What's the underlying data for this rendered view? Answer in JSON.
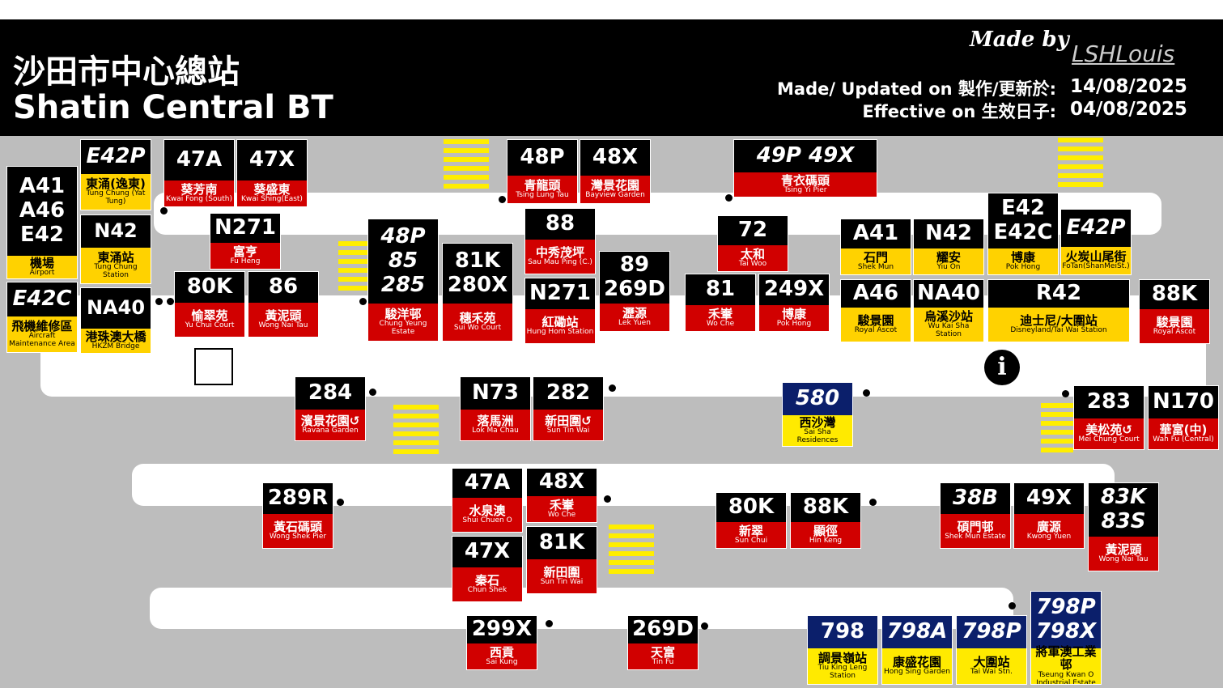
{
  "header": {
    "title_zh": "沙田市中心總站",
    "title_en": "Shatin Central BT",
    "made_by": "Made by",
    "author": "LSHLouis",
    "updated_label": "Made/ Updated on 製作/更新於:",
    "updated_date": "14/08/2025",
    "effective_label": "Effective on 生效日子:",
    "effective_date": "04/08/2025"
  },
  "signs": [
    {
      "routes": [
        "A41",
        "A46",
        "E42"
      ],
      "zh": "機場",
      "en": "Airport",
      "header_color": "#000000",
      "color": "#ffd200"
    },
    {
      "routes": [
        "E42C"
      ],
      "zh": "飛機維修區",
      "en": "Aircraft Maintenance Area",
      "header_color": "#000000",
      "color": "#ffd200"
    },
    {
      "routes": [
        "E42P"
      ],
      "zh": "東涌(逸東)",
      "en": "Tung Chung (Yat Tung)",
      "header_color": "#000000",
      "color": "#ffd200"
    },
    {
      "routes": [
        "N42"
      ],
      "zh": "東涌站",
      "en": "Tung Chung Station",
      "header_color": "#000000",
      "color": "#ffd200"
    },
    {
      "routes": [
        "NA40"
      ],
      "zh": "港珠澳大橋",
      "en": "HKZM Bridge",
      "header_color": "#000000",
      "color": "#ffd200"
    },
    {
      "routes": [
        "47A"
      ],
      "zh": "葵芳南",
      "en": "Kwai Fong (South)",
      "header_color": "#000000",
      "color": "#d10000"
    },
    {
      "routes": [
        "47X"
      ],
      "zh": "葵盛東",
      "en": "Kwai Shing(East)",
      "header_color": "#000000",
      "color": "#d10000"
    },
    {
      "routes": [
        "N271"
      ],
      "zh": "富亨",
      "en": "Fu Heng",
      "header_color": "#000000",
      "color": "#d10000"
    },
    {
      "routes": [
        "80K"
      ],
      "zh": "愉翠苑",
      "en": "Yu Chui Court",
      "header_color": "#000000",
      "color": "#d10000"
    },
    {
      "routes": [
        "86"
      ],
      "zh": "黃泥頭",
      "en": "Wong Nai Tau",
      "header_color": "#000000",
      "color": "#d10000"
    },
    {
      "routes": [
        "48P",
        "85",
        "285"
      ],
      "zh": "駿洋邨",
      "en": "Chung Yeung Estate",
      "header_color": "#000000",
      "color": "#d10000"
    },
    {
      "routes": [
        "81K",
        "280X"
      ],
      "zh": "穗禾苑",
      "en": "Sui Wo Court",
      "header_color": "#000000",
      "color": "#d10000"
    },
    {
      "routes": [
        "48P"
      ],
      "zh": "青龍頭",
      "en": "Tsing Lung Tau",
      "header_color": "#000000",
      "color": "#d10000"
    },
    {
      "routes": [
        "48X"
      ],
      "zh": "灣景花園",
      "en": "Bayview Garden",
      "header_color": "#000000",
      "color": "#d10000"
    },
    {
      "routes": [
        "88"
      ],
      "zh": "中秀茂坪",
      "en": "Sau Mau Ping (C.)",
      "header_color": "#000000",
      "color": "#d10000"
    },
    {
      "routes": [
        "N271"
      ],
      "zh": "紅磡站",
      "en": "Hung Hom Station",
      "header_color": "#000000",
      "color": "#d10000"
    },
    {
      "routes": [
        "89",
        "269D"
      ],
      "zh": "瀝源",
      "en": "Lek Yuen",
      "header_color": "#000000",
      "color": "#d10000"
    },
    {
      "routes": [
        "49P 49X"
      ],
      "zh": "青衣碼頭",
      "en": "Tsing Yi Pier",
      "header_color": "#000000",
      "color": "#d10000"
    },
    {
      "routes": [
        "72"
      ],
      "zh": "太和",
      "en": "Tai Woo",
      "header_color": "#000000",
      "color": "#d10000"
    },
    {
      "routes": [
        "81"
      ],
      "zh": "禾輋",
      "en": "Wo Che",
      "header_color": "#000000",
      "color": "#d10000"
    },
    {
      "routes": [
        "249X"
      ],
      "zh": "博康",
      "en": "Pok Hong",
      "header_color": "#000000",
      "color": "#d10000"
    },
    {
      "routes": [
        "A41"
      ],
      "zh": "石門",
      "en": "Shek Mun",
      "header_color": "#000000",
      "color": "#ffd200"
    },
    {
      "routes": [
        "N42"
      ],
      "zh": "耀安",
      "en": "Yiu On",
      "header_color": "#000000",
      "color": "#ffd200"
    },
    {
      "routes": [
        "E42",
        "E42C"
      ],
      "zh": "博康",
      "en": "Pok Hong",
      "header_color": "#000000",
      "color": "#ffd200"
    },
    {
      "routes": [
        "E42P"
      ],
      "zh": "火炭山尾街",
      "en": "FoTan(ShanMeiSt.)",
      "header_color": "#000000",
      "color": "#ffd200"
    },
    {
      "routes": [
        "A46"
      ],
      "zh": "駿景園",
      "en": "Royal Ascot",
      "header_color": "#000000",
      "color": "#ffd200"
    },
    {
      "routes": [
        "NA40"
      ],
      "zh": "烏溪沙站",
      "en": "Wu Kai Sha Station",
      "header_color": "#000000",
      "color": "#ffd200"
    },
    {
      "routes": [
        "R42"
      ],
      "zh": "迪士尼/大圍站",
      "en": "Disneyland/Tai Wai Station",
      "header_color": "#000000",
      "color": "#ffd200"
    },
    {
      "routes": [
        "88K"
      ],
      "zh": "駿景園",
      "en": "Royal Ascot",
      "header_color": "#000000",
      "color": "#d10000"
    },
    {
      "routes": [
        "284"
      ],
      "zh": "濱景花園↺",
      "en": "Ravana Garden",
      "header_color": "#000000",
      "color": "#d10000"
    },
    {
      "routes": [
        "N73"
      ],
      "zh": "落馬洲",
      "en": "Lok Ma Chau",
      "header_color": "#000000",
      "color": "#d10000"
    },
    {
      "routes": [
        "282"
      ],
      "zh": "新田圍↺",
      "en": "Sun Tin Wai",
      "header_color": "#000000",
      "color": "#d10000"
    },
    {
      "routes": [
        "580"
      ],
      "zh": "西沙灣",
      "en": "Sai Sha Residences",
      "header_color": "#0b1f6b",
      "color": "#ffea00"
    },
    {
      "routes": [
        "283"
      ],
      "zh": "美松苑↺",
      "en": "Mei Chung Court",
      "header_color": "#000000",
      "color": "#d10000"
    },
    {
      "routes": [
        "N170"
      ],
      "zh": "華富(中)",
      "en": "Wah Fu (Central)",
      "header_color": "#000000",
      "color": "#d10000"
    },
    {
      "routes": [
        "289R"
      ],
      "zh": "黃石碼頭",
      "en": "Wong Shek Pier",
      "header_color": "#000000",
      "color": "#d10000"
    },
    {
      "routes": [
        "47A"
      ],
      "zh": "水泉澳",
      "en": "Shui Chuen O",
      "header_color": "#000000",
      "color": "#d10000"
    },
    {
      "routes": [
        "48X"
      ],
      "zh": "禾輋",
      "en": "Wo Che",
      "header_color": "#000000",
      "color": "#d10000"
    },
    {
      "routes": [
        "47X"
      ],
      "zh": "秦石",
      "en": "Chun Shek",
      "header_color": "#000000",
      "color": "#d10000"
    },
    {
      "routes": [
        "81K"
      ],
      "zh": "新田圍",
      "en": "Sun Tin Wai",
      "header_color": "#000000",
      "color": "#d10000"
    },
    {
      "routes": [
        "80K"
      ],
      "zh": "新翠",
      "en": "Sun Chui",
      "header_color": "#000000",
      "color": "#d10000"
    },
    {
      "routes": [
        "88K"
      ],
      "zh": "顯徑",
      "en": "Hin Keng",
      "header_color": "#000000",
      "color": "#d10000"
    },
    {
      "routes": [
        "38B"
      ],
      "zh": "碩門邨",
      "en": "Shek Mun Estate",
      "header_color": "#000000",
      "color": "#d10000"
    },
    {
      "routes": [
        "49X"
      ],
      "zh": "廣源",
      "en": "Kwong Yuen",
      "header_color": "#000000",
      "color": "#d10000"
    },
    {
      "routes": [
        "83K",
        "83S"
      ],
      "zh": "黃泥頭",
      "en": "Wong Nai Tau",
      "header_color": "#000000",
      "color": "#d10000"
    },
    {
      "routes": [
        "299X"
      ],
      "zh": "西貢",
      "en": "Sai Kung",
      "header_color": "#000000",
      "color": "#d10000"
    },
    {
      "routes": [
        "269D"
      ],
      "zh": "天富",
      "en": "Tin Fu",
      "header_color": "#000000",
      "color": "#d10000"
    },
    {
      "routes": [
        "798"
      ],
      "zh": "調景嶺站",
      "en": "Tiu King Leng Station",
      "header_color": "#0b1f6b",
      "color": "#ffea00"
    },
    {
      "routes": [
        "798A"
      ],
      "zh": "康盛花園",
      "en": "Hong Sing Garden",
      "header_color": "#0b1f6b",
      "color": "#ffea00"
    },
    {
      "routes": [
        "798P"
      ],
      "zh": "大圍站",
      "en": "Tai Wai Stn.",
      "header_color": "#0b1f6b",
      "color": "#ffea00"
    },
    {
      "routes": [
        "798P",
        "798X"
      ],
      "zh": "將軍澳工業邨",
      "en": "Tseung Kwan O Industrial Estate",
      "header_color": "#0b1f6b",
      "color": "#ffea00"
    }
  ]
}
